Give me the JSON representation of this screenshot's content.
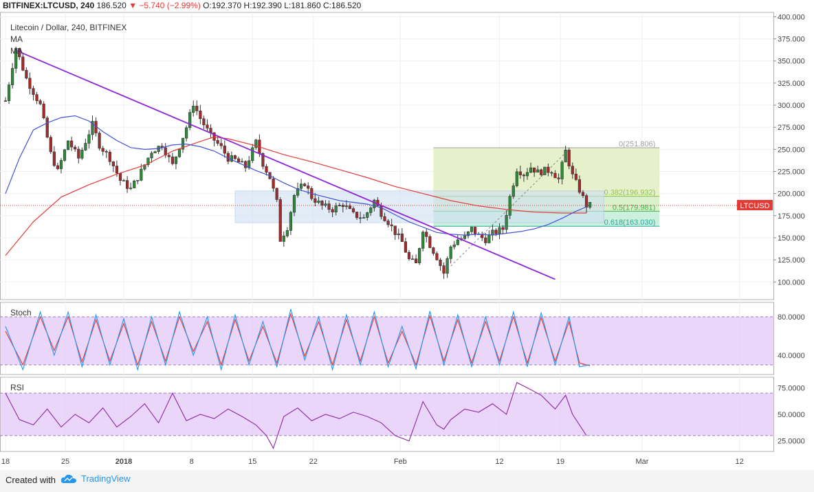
{
  "header": {
    "symbol": "BITFINEX:LTCUSD, 240",
    "last": "186.520",
    "change": "▼ −5.740 (−2.99%)",
    "ohlc": "O:192.370 H:192.390 L:181.860 C:186.520"
  },
  "footer": {
    "created_with": "Created with",
    "brand": "TradingView"
  },
  "colors": {
    "up": "#2e8b3a",
    "down": "#a32b2b",
    "ma_fast": "#3f51d6",
    "ma_slow": "#e53935",
    "trend": "#8e24d8",
    "fib_zone": "#cfe8a4",
    "range_box": "#b6cdea",
    "stoch_k": "#2196f3",
    "stoch_d": "#e53935",
    "rsi": "#8e24aa",
    "osc_band": "#e3c8f7"
  },
  "chart_data": [
    {
      "type": "line",
      "subtype": "candlestick",
      "title": "Litecoin / Dollar, 240, BITFINEX",
      "legend": [
        "MA",
        "MA"
      ],
      "x_tick_labels": [
        "18",
        "25",
        "2018",
        "8",
        "15",
        "22",
        "Feb",
        "12",
        "19",
        "Mar",
        "12"
      ],
      "ylim": [
        80,
        405
      ],
      "y_ticks": [
        100,
        125,
        150,
        175,
        200,
        225,
        250,
        275,
        300,
        325,
        350,
        375,
        400
      ],
      "y_tick_labels": [
        "100.000",
        "125.000",
        "150.000",
        "175.000",
        "200.000",
        "225.000",
        "250.000",
        "275.000",
        "300.000",
        "325.000",
        "350.000",
        "375.000",
        "400.000"
      ],
      "last_price": 186.52,
      "last_price_label": "LTCUSD",
      "price_path": [
        [
          0,
          305
        ],
        [
          3,
          365
        ],
        [
          6,
          330
        ],
        [
          10,
          300
        ],
        [
          13,
          245
        ],
        [
          15,
          225
        ],
        [
          18,
          260
        ],
        [
          21,
          240
        ],
        [
          25,
          278
        ],
        [
          27,
          255
        ],
        [
          30,
          240
        ],
        [
          33,
          215
        ],
        [
          36,
          205
        ],
        [
          39,
          225
        ],
        [
          42,
          248
        ],
        [
          45,
          255
        ],
        [
          48,
          232
        ],
        [
          52,
          275
        ],
        [
          54,
          302
        ],
        [
          56,
          285
        ],
        [
          59,
          265
        ],
        [
          62,
          252
        ],
        [
          64,
          240
        ],
        [
          66,
          238
        ],
        [
          69,
          230
        ],
        [
          72,
          258
        ],
        [
          74,
          234
        ],
        [
          76,
          218
        ],
        [
          78,
          190
        ],
        [
          79,
          148
        ],
        [
          81,
          162
        ],
        [
          83,
          198
        ],
        [
          86,
          212
        ],
        [
          88,
          196
        ],
        [
          91,
          186
        ],
        [
          94,
          182
        ],
        [
          97,
          188
        ],
        [
          100,
          176
        ],
        [
          103,
          172
        ],
        [
          106,
          192
        ],
        [
          108,
          178
        ],
        [
          110,
          168
        ],
        [
          112,
          156
        ],
        [
          114,
          145
        ],
        [
          116,
          125
        ],
        [
          118,
          120
        ],
        [
          120,
          160
        ],
        [
          122,
          142
        ],
        [
          124,
          128
        ],
        [
          126,
          110
        ],
        [
          128,
          140
        ],
        [
          130,
          148
        ],
        [
          132,
          150
        ],
        [
          134,
          160
        ],
        [
          136,
          152
        ],
        [
          138,
          148
        ],
        [
          140,
          155
        ],
        [
          143,
          160
        ],
        [
          145,
          196
        ],
        [
          147,
          228
        ],
        [
          149,
          222
        ],
        [
          151,
          230
        ],
        [
          153,
          224
        ],
        [
          155,
          226
        ],
        [
          157,
          226
        ],
        [
          159,
          216
        ],
        [
          161,
          248
        ],
        [
          163,
          220
        ],
        [
          165,
          204
        ],
        [
          167,
          186.5
        ]
      ],
      "ma_fast_path": [
        [
          0,
          200
        ],
        [
          4,
          240
        ],
        [
          8,
          272
        ],
        [
          12,
          280
        ],
        [
          16,
          286
        ],
        [
          20,
          288
        ],
        [
          24,
          282
        ],
        [
          28,
          270
        ],
        [
          32,
          260
        ],
        [
          36,
          252
        ],
        [
          40,
          250
        ],
        [
          44,
          251
        ],
        [
          48,
          255
        ],
        [
          52,
          256
        ],
        [
          56,
          253
        ],
        [
          60,
          248
        ],
        [
          64,
          240
        ],
        [
          68,
          233
        ],
        [
          72,
          226
        ],
        [
          76,
          220
        ],
        [
          80,
          212
        ],
        [
          84,
          205
        ],
        [
          88,
          200
        ],
        [
          92,
          196
        ],
        [
          96,
          192
        ],
        [
          100,
          190
        ],
        [
          104,
          188
        ],
        [
          108,
          184
        ],
        [
          112,
          176
        ],
        [
          116,
          168
        ],
        [
          120,
          162
        ],
        [
          124,
          156
        ],
        [
          128,
          154
        ],
        [
          132,
          153
        ],
        [
          136,
          154
        ],
        [
          140,
          153
        ],
        [
          144,
          155
        ],
        [
          148,
          157
        ],
        [
          152,
          160
        ],
        [
          156,
          165
        ],
        [
          160,
          172
        ],
        [
          164,
          180
        ],
        [
          167,
          185
        ]
      ],
      "ma_slow_path": [
        [
          0,
          130
        ],
        [
          8,
          168
        ],
        [
          16,
          196
        ],
        [
          24,
          210
        ],
        [
          32,
          222
        ],
        [
          40,
          232
        ],
        [
          48,
          248
        ],
        [
          56,
          259
        ],
        [
          60,
          264
        ],
        [
          64,
          262
        ],
        [
          72,
          254
        ],
        [
          80,
          244
        ],
        [
          88,
          236
        ],
        [
          96,
          227
        ],
        [
          104,
          218
        ],
        [
          112,
          208
        ],
        [
          120,
          200
        ],
        [
          128,
          192
        ],
        [
          136,
          186
        ],
        [
          144,
          182
        ],
        [
          152,
          179
        ],
        [
          160,
          178
        ],
        [
          167,
          178
        ]
      ],
      "trendline": {
        "from": [
          3,
          362
        ],
        "to": [
          158,
          103
        ]
      },
      "range_box": {
        "from_x": 66,
        "to_x": 172,
        "top": 203,
        "bottom": 167
      },
      "fibonacci": {
        "from_x": 123,
        "to_x": 188,
        "top": 251.806,
        "bottom": 163.03,
        "levels": [
          {
            "value": 251.806,
            "label": "0(251.806)"
          },
          {
            "value": 196.932,
            "label": "0.382(196.932)"
          },
          {
            "value": 179.981,
            "label": "0.5(179.981)"
          },
          {
            "value": 163.03,
            "label": "0.618(163.030)"
          }
        ]
      }
    },
    {
      "type": "line",
      "title": "Stoch",
      "ylim": [
        20,
        95
      ],
      "y_ticks": [
        40,
        80
      ],
      "y_tick_labels": [
        "40.0000",
        "80.0000"
      ],
      "band": [
        30,
        80
      ],
      "k_path": [
        [
          0,
          70
        ],
        [
          5,
          25
        ],
        [
          10,
          85
        ],
        [
          14,
          40
        ],
        [
          18,
          85
        ],
        [
          22,
          28
        ],
        [
          26,
          82
        ],
        [
          30,
          30
        ],
        [
          34,
          78
        ],
        [
          38,
          25
        ],
        [
          42,
          80
        ],
        [
          46,
          30
        ],
        [
          50,
          85
        ],
        [
          54,
          40
        ],
        [
          58,
          80
        ],
        [
          62,
          25
        ],
        [
          66,
          82
        ],
        [
          70,
          30
        ],
        [
          74,
          75
        ],
        [
          78,
          28
        ],
        [
          82,
          88
        ],
        [
          86,
          35
        ],
        [
          90,
          80
        ],
        [
          94,
          25
        ],
        [
          98,
          82
        ],
        [
          102,
          30
        ],
        [
          106,
          85
        ],
        [
          110,
          28
        ],
        [
          114,
          70
        ],
        [
          118,
          26
        ],
        [
          122,
          86
        ],
        [
          126,
          30
        ],
        [
          130,
          82
        ],
        [
          134,
          28
        ],
        [
          138,
          80
        ],
        [
          142,
          30
        ],
        [
          146,
          85
        ],
        [
          150,
          28
        ],
        [
          154,
          84
        ],
        [
          158,
          30
        ],
        [
          162,
          80
        ],
        [
          165,
          28
        ],
        [
          168,
          30
        ]
      ],
      "d_path": [
        [
          0,
          65
        ],
        [
          5,
          30
        ],
        [
          10,
          80
        ],
        [
          14,
          45
        ],
        [
          18,
          80
        ],
        [
          22,
          33
        ],
        [
          26,
          77
        ],
        [
          30,
          34
        ],
        [
          34,
          73
        ],
        [
          38,
          30
        ],
        [
          42,
          75
        ],
        [
          46,
          34
        ],
        [
          50,
          80
        ],
        [
          54,
          44
        ],
        [
          58,
          75
        ],
        [
          62,
          30
        ],
        [
          66,
          77
        ],
        [
          70,
          34
        ],
        [
          74,
          70
        ],
        [
          78,
          32
        ],
        [
          82,
          83
        ],
        [
          86,
          39
        ],
        [
          90,
          75
        ],
        [
          94,
          30
        ],
        [
          98,
          77
        ],
        [
          102,
          34
        ],
        [
          106,
          80
        ],
        [
          110,
          32
        ],
        [
          114,
          65
        ],
        [
          118,
          30
        ],
        [
          122,
          81
        ],
        [
          126,
          34
        ],
        [
          130,
          77
        ],
        [
          134,
          32
        ],
        [
          138,
          75
        ],
        [
          142,
          34
        ],
        [
          146,
          80
        ],
        [
          150,
          32
        ],
        [
          154,
          79
        ],
        [
          158,
          34
        ],
        [
          162,
          75
        ],
        [
          165,
          32
        ],
        [
          168,
          29
        ]
      ]
    },
    {
      "type": "line",
      "title": "RSI",
      "ylim": [
        15,
        85
      ],
      "y_ticks": [
        25,
        50,
        75
      ],
      "y_tick_labels": [
        "25.0000",
        "50.0000",
        "75.0000"
      ],
      "band": [
        30,
        70
      ],
      "path": [
        [
          0,
          70
        ],
        [
          4,
          45
        ],
        [
          8,
          40
        ],
        [
          12,
          55
        ],
        [
          16,
          38
        ],
        [
          20,
          50
        ],
        [
          24,
          42
        ],
        [
          28,
          56
        ],
        [
          32,
          38
        ],
        [
          36,
          48
        ],
        [
          40,
          60
        ],
        [
          44,
          42
        ],
        [
          48,
          70
        ],
        [
          52,
          44
        ],
        [
          56,
          50
        ],
        [
          60,
          46
        ],
        [
          64,
          55
        ],
        [
          68,
          48
        ],
        [
          72,
          40
        ],
        [
          75,
          30
        ],
        [
          77,
          18
        ],
        [
          80,
          48
        ],
        [
          84,
          56
        ],
        [
          88,
          44
        ],
        [
          92,
          50
        ],
        [
          96,
          46
        ],
        [
          100,
          52
        ],
        [
          104,
          48
        ],
        [
          108,
          42
        ],
        [
          112,
          30
        ],
        [
          116,
          25
        ],
        [
          120,
          62
        ],
        [
          124,
          40
        ],
        [
          126,
          36
        ],
        [
          128,
          45
        ],
        [
          132,
          55
        ],
        [
          136,
          52
        ],
        [
          140,
          60
        ],
        [
          144,
          50
        ],
        [
          147,
          80
        ],
        [
          150,
          75
        ],
        [
          154,
          68
        ],
        [
          158,
          55
        ],
        [
          161,
          68
        ],
        [
          163,
          50
        ],
        [
          165,
          40
        ],
        [
          167,
          30
        ]
      ]
    }
  ]
}
